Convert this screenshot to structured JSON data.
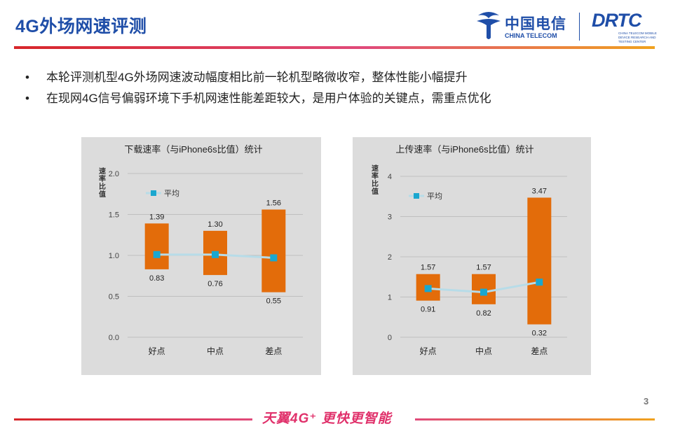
{
  "page": {
    "title": "4G外场网速评测",
    "page_number": "3",
    "slogan": "天翼4G⁺ 更快更智能"
  },
  "logos": {
    "china_telecom_cn": "中国电信",
    "china_telecom_en": "CHINA TELECOM",
    "drtc": "DRTC",
    "drtc_sub": "CHINA TELECOM MOBILE DEVICE RESEARCH AND TESTING CENTER"
  },
  "bullets": [
    "本轮评测机型4G外场网速波动幅度相比前一轮机型略微收窄，整体性能小幅提升",
    "在现网4G信号偏弱环境下手机网速性能差距较大，是用户体验的关键点，需重点优化"
  ],
  "colors": {
    "bar": "#e36c0a",
    "line": "#b7dce8",
    "marker": "#1aa7cf",
    "panel_bg": "#dcdcdc",
    "grid": "#bfbfbf",
    "title_blue": "#1f4ea8"
  },
  "chart_data": [
    {
      "type": "bar",
      "subtype": "floating-range-with-average-line",
      "title": "下载速率（与iPhone6s比值）统计",
      "ylabel": "速率比值",
      "categories": [
        "好点",
        "中点",
        "差点"
      ],
      "ranges": [
        {
          "low": 0.83,
          "high": 1.39
        },
        {
          "low": 0.76,
          "high": 1.3
        },
        {
          "low": 0.55,
          "high": 1.56
        }
      ],
      "series": [
        {
          "name": "平均",
          "values": [
            1.01,
            1.01,
            0.97
          ]
        }
      ],
      "ylim": [
        0,
        2.0
      ],
      "yticks": [
        "0.0",
        "0.5",
        "1.0",
        "1.5",
        "2.0"
      ],
      "grid": true,
      "legend": "top-left"
    },
    {
      "type": "bar",
      "subtype": "floating-range-with-average-line",
      "title": "上传速率（与iPhone6s比值）统计",
      "ylabel": "速率比值",
      "categories": [
        "好点",
        "中点",
        "差点"
      ],
      "ranges": [
        {
          "low": 0.91,
          "high": 1.57
        },
        {
          "low": 0.82,
          "high": 1.57
        },
        {
          "low": 0.32,
          "high": 3.47
        }
      ],
      "series": [
        {
          "name": "平均",
          "values": [
            1.21,
            1.12,
            1.37
          ]
        }
      ],
      "ylim": [
        0,
        4
      ],
      "yticks": [
        "0",
        "1",
        "2",
        "3",
        "4"
      ],
      "grid": true,
      "legend": "top-left"
    }
  ]
}
